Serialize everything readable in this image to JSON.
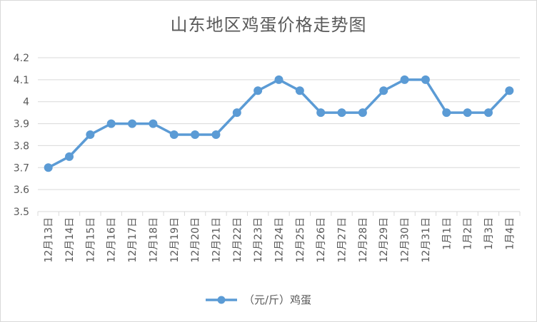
{
  "chart_data": {
    "type": "line",
    "title": "山东地区鸡蛋价格走势图",
    "categories": [
      "12月13日",
      "12月14日",
      "12月15日",
      "12月16日",
      "12月17日",
      "12月18日",
      "12月19日",
      "12月20日",
      "12月21日",
      "12月22日",
      "12月23日",
      "12月24日",
      "12月25日",
      "12月26日",
      "12月27日",
      "12月28日",
      "12月29日",
      "12月30日",
      "12月31日",
      "1月1日",
      "1月2日",
      "1月3日",
      "1月4日"
    ],
    "series": [
      {
        "name": "（元/斤）鸡蛋",
        "color": "#5b9bd5",
        "values": [
          3.7,
          3.75,
          3.85,
          3.9,
          3.9,
          3.9,
          3.85,
          3.85,
          3.85,
          3.95,
          4.05,
          4.1,
          4.05,
          3.95,
          3.95,
          3.95,
          4.05,
          4.1,
          4.1,
          3.95,
          3.95,
          3.95,
          4.05
        ]
      }
    ],
    "ylim": [
      3.5,
      4.2
    ],
    "yticks": [
      "3.5",
      "3.6",
      "3.7",
      "3.8",
      "3.9",
      "4",
      "4.1",
      "4.2"
    ],
    "grid": true,
    "legend": "bottom"
  }
}
